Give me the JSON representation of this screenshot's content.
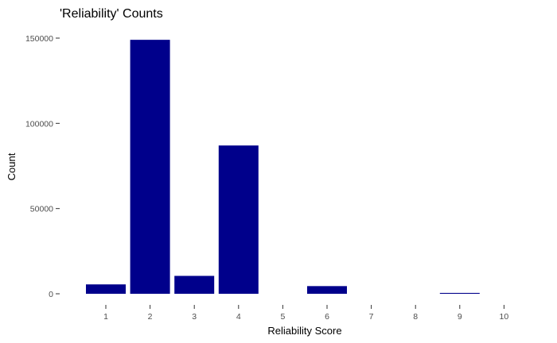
{
  "chart_data": {
    "type": "bar",
    "title": "'Reliability' Counts",
    "xlabel": "Reliability Score",
    "ylabel": "Count",
    "categories": [
      "1",
      "2",
      "3",
      "4",
      "5",
      "6",
      "7",
      "8",
      "9",
      "10"
    ],
    "values": [
      5500,
      149000,
      10500,
      87000,
      0,
      4500,
      0,
      0,
      500,
      0
    ],
    "ylim": [
      0,
      150000
    ],
    "y_ticks": [
      0,
      50000,
      100000,
      150000
    ],
    "y_tick_labels": [
      "0",
      "50000",
      "100000",
      "150000"
    ],
    "bar_color": "#00008B",
    "grid": false,
    "legend": "none"
  }
}
